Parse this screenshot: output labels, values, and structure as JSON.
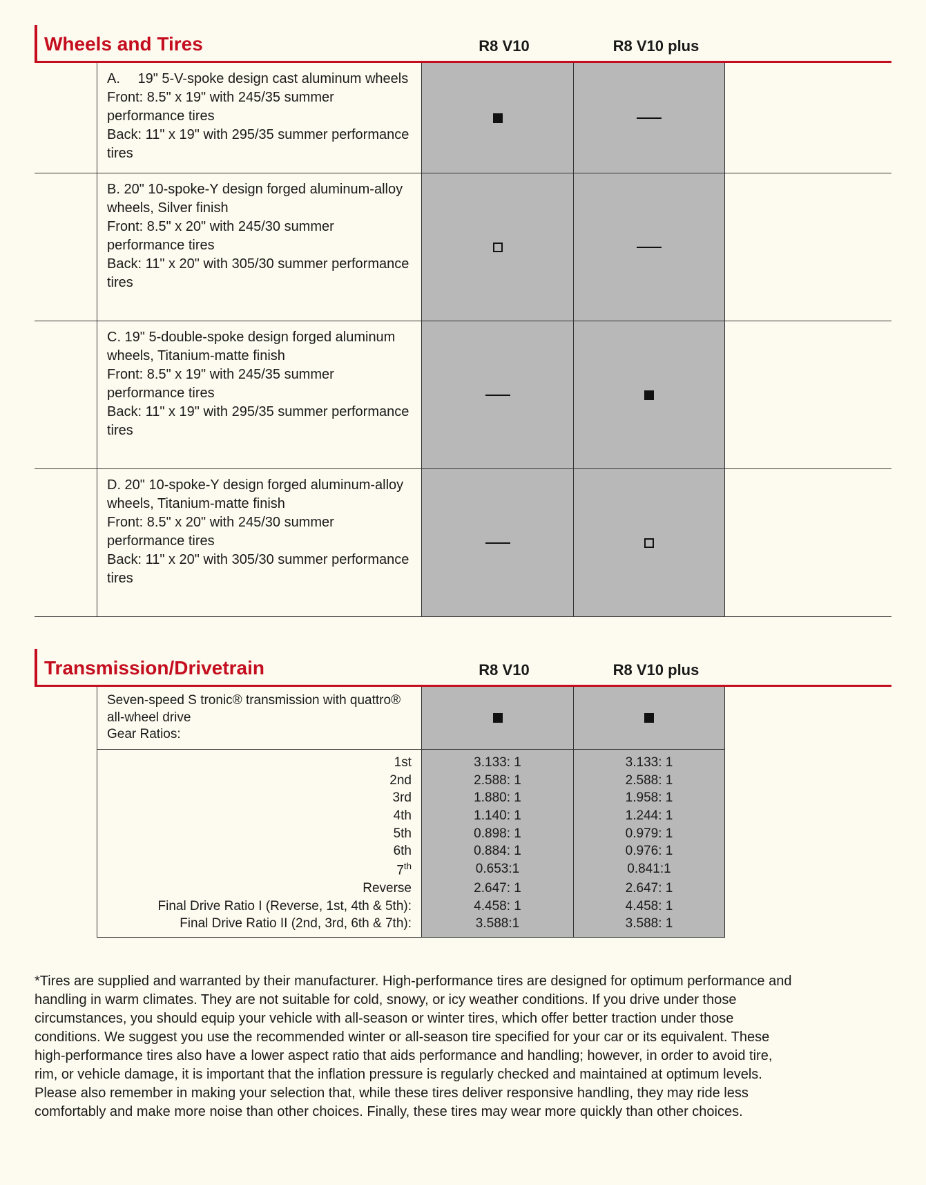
{
  "colors": {
    "accent": "#c40d1e",
    "cell_bg": "#b8b8b8",
    "page_bg": "#fdfbef",
    "text": "#1a1a1a",
    "border": "#333333"
  },
  "sections": {
    "wheels": {
      "title": "Wheels and Tires",
      "col1": "R8 V10",
      "col2": "R8 V10 plus",
      "rows": [
        {
          "desc": "A.  19\" 5-V-spoke design cast aluminum wheels\nFront: 8.5\" x 19\" with 245/35 summer performance tires\nBack: 11\" x 19\" with 295/35 summer performance tires",
          "v10": "filled",
          "plus": "dash"
        },
        {
          "desc": "B. 20\" 10-spoke-Y design forged aluminum-alloy wheels, Silver finish\nFront: 8.5\" x 20\" with 245/30 summer performance tires\nBack: 11\" x 20\" with 305/30 summer performance tires\n ",
          "v10": "outline",
          "plus": "dash"
        },
        {
          "desc": "C. 19\" 5-double-spoke design forged aluminum wheels, Titanium-matte finish\n Front: 8.5\" x 19\" with 245/35 summer performance tires\n Back: 11\" x 19\" with 295/35 summer performance tires\n ",
          "v10": "dash",
          "plus": "filled"
        },
        {
          "desc": "D. 20\" 10-spoke-Y design forged aluminum-alloy wheels, Titanium-matte finish\nFront: 8.5\" x 20\" with 245/30 summer performance tires\nBack: 11\" x 20\" with 305/30 summer performance tires\n ",
          "v10": "dash",
          "plus": "outline"
        }
      ]
    },
    "trans": {
      "title": "Transmission/Drivetrain",
      "col1": "R8 V10",
      "col2": "R8 V10 plus",
      "intro": {
        "desc": "Seven-speed S tronic® transmission with quattro® all-wheel drive\nGear Ratios:",
        "v10": "filled",
        "plus": "filled"
      },
      "ratios": [
        {
          "label": "1st",
          "v10": "3.133: 1",
          "plus": "3.133: 1"
        },
        {
          "label": "2nd",
          "v10": "2.588: 1",
          "plus": "2.588: 1"
        },
        {
          "label": "3rd",
          "v10": "1.880: 1",
          "plus": "1.958: 1"
        },
        {
          "label": "4th",
          "v10": "1.140: 1",
          "plus": "1.244: 1"
        },
        {
          "label": "5th",
          "v10": "0.898: 1",
          "plus": "0.979: 1"
        },
        {
          "label": "6th",
          "v10": "0.884: 1",
          "plus": "0.976: 1"
        },
        {
          "label": "7th",
          "label_html": "7<sup>th</sup>",
          "v10": "0.653:1",
          "plus": "0.841:1"
        },
        {
          "label": "Reverse",
          "v10": "2.647: 1",
          "plus": "2.647: 1"
        },
        {
          "label": "Final Drive Ratio I (Reverse, 1st, 4th & 5th):",
          "v10": "4.458: 1",
          "plus": "4.458: 1"
        },
        {
          "label": "Final Drive Ratio II (2nd, 3rd, 6th & 7th):",
          "v10": "3.588:1",
          "plus": "3.588: 1"
        }
      ]
    }
  },
  "footnote": "*Tires are supplied and warranted by their manufacturer. High-performance tires are designed for optimum performance and handling in warm climates. They are not suitable for cold, snowy, or icy weather conditions. If you drive under those circumstances, you should equip your vehicle with all-season or winter tires, which offer better traction under those conditions. We suggest you use the recommended winter or all-season tire specified for your car or its equivalent. These high-performance tires also have a lower aspect ratio that aids performance and handling; however, in order to avoid tire, rim, or vehicle damage, it is important that the inflation pressure is regularly checked and maintained at optimum levels. Please also remember in making your selection that, while these tires deliver responsive handling, they may ride less comfortably and make more noise than other choices. Finally, these tires may wear more quickly than other choices."
}
